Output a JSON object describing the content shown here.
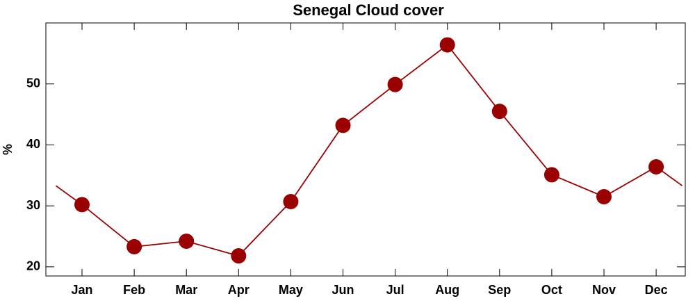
{
  "chart_data": {
    "type": "line",
    "title": "Senegal Cloud cover",
    "y_label": "%",
    "categories": [
      "Jan",
      "Feb",
      "Mar",
      "Apr",
      "May",
      "Jun",
      "Jul",
      "Aug",
      "Sep",
      "Oct",
      "Nov",
      "Dec"
    ],
    "series": [
      {
        "name": "Cloud cover",
        "color": "#9b0000",
        "values": [
          30.2,
          23.3,
          24.2,
          21.8,
          30.7,
          43.2,
          49.9,
          56.4,
          45.5,
          35.1,
          31.5,
          36.4
        ]
      }
    ],
    "ylim": [
      18.5,
      60
    ],
    "yticks": [
      20,
      30,
      40,
      50
    ],
    "grid": false
  }
}
